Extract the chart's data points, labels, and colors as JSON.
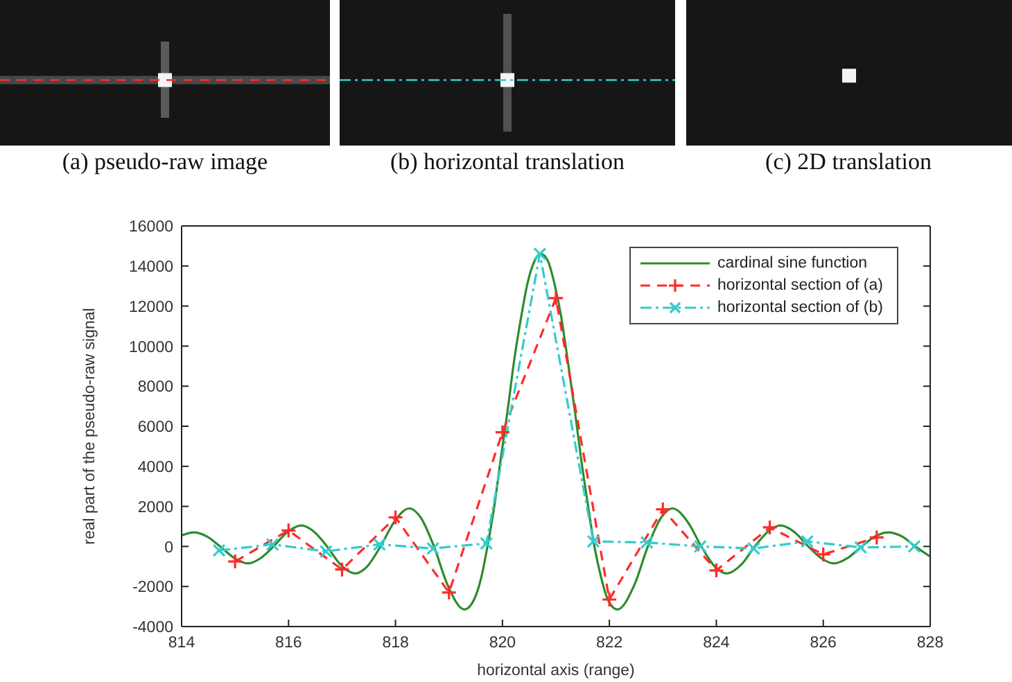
{
  "chart_data": {
    "type": "line",
    "xlabel": "horizontal axis (range)",
    "ylabel": "real part of the pseudo-raw signal",
    "annotations": [
      "(a) pseudo-raw image",
      "(b) horizontal translation",
      "(c) 2D translation"
    ],
    "xlim": [
      814,
      828
    ],
    "xticks": [
      814,
      816,
      818,
      820,
      822,
      824,
      826,
      828
    ],
    "ylim": [
      -4000,
      16000
    ],
    "yticks": [
      -4000,
      -2000,
      0,
      2000,
      4000,
      6000,
      8000,
      10000,
      12000,
      14000,
      16000
    ],
    "legend": "top right",
    "series": [
      {
        "name": "cardinal sine function",
        "color": "#2e8b2e",
        "marker": "none",
        "line_style": "solid",
        "x": [
          814.0,
          814.23,
          814.47,
          814.72,
          814.97,
          815.24,
          815.47,
          815.72,
          815.97,
          816.24,
          816.47,
          816.72,
          816.97,
          817.25,
          817.47,
          817.72,
          817.97,
          818.26,
          818.47,
          818.72,
          818.97,
          819.29,
          819.47,
          819.6,
          819.72,
          819.85,
          819.97,
          820.1,
          820.22,
          820.35,
          820.47,
          820.6,
          820.72,
          820.85,
          820.97,
          821.1,
          821.22,
          821.35,
          821.47,
          821.6,
          821.72,
          821.85,
          821.97,
          822.15,
          822.47,
          822.72,
          822.97,
          823.18,
          823.47,
          823.72,
          823.97,
          824.19,
          824.47,
          824.72,
          824.97,
          825.2,
          825.47,
          825.72,
          825.97,
          826.2,
          826.47,
          826.72,
          826.97,
          827.21,
          827.47,
          827.72,
          827.97,
          828.0
        ],
        "values": [
          550,
          700,
          500,
          0,
          -550,
          -850,
          -600,
          0,
          700,
          1050,
          750,
          0,
          -900,
          -1350,
          -1000,
          0,
          1200,
          1900,
          1450,
          0,
          -1900,
          -3150,
          -2650,
          -1600,
          0,
          2050,
          4400,
          6850,
          9300,
          11450,
          13150,
          14250,
          14600,
          14250,
          13150,
          11450,
          9300,
          6850,
          4400,
          2050,
          0,
          -1600,
          -2650,
          -3150,
          -1900,
          0,
          1450,
          1900,
          1200,
          0,
          -1000,
          -1350,
          -900,
          0,
          750,
          1050,
          700,
          0,
          -600,
          -850,
          -550,
          0,
          500,
          700,
          500,
          0,
          -450,
          -500
        ]
      },
      {
        "name": "horizontal section of (a)",
        "color": "#ff2a2a",
        "marker": "plus",
        "line_style": "dashed",
        "x": [
          815,
          816,
          817,
          818,
          819,
          820,
          821,
          822,
          823,
          824,
          825,
          826,
          827
        ],
        "values": [
          -750,
          800,
          -1150,
          1450,
          -2300,
          5700,
          12400,
          -2650,
          1850,
          -1200,
          950,
          -400,
          450
        ]
      },
      {
        "name": "horizontal section of (b)",
        "color": "#33cccc",
        "marker": "cross",
        "line_style": "dashdot",
        "x": [
          814.7,
          815.7,
          816.7,
          817.7,
          818.7,
          819.7,
          820.7,
          821.7,
          822.7,
          823.7,
          824.7,
          825.7,
          826.7,
          827.7
        ],
        "values": [
          -200,
          100,
          -250,
          100,
          -100,
          150,
          14600,
          250,
          200,
          0,
          -100,
          250,
          -50,
          0
        ]
      }
    ]
  }
}
